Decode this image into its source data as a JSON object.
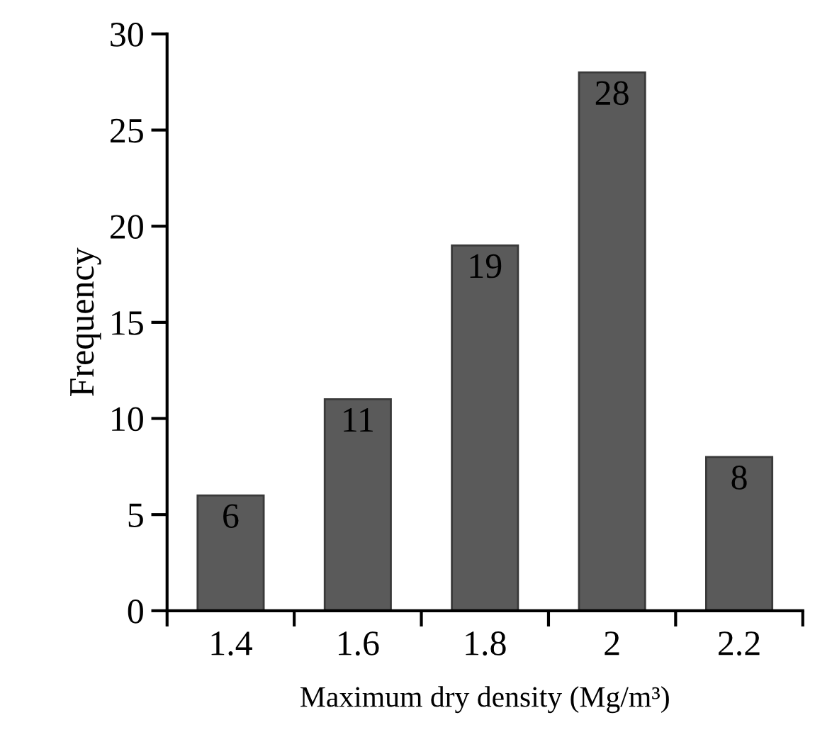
{
  "chart_data": {
    "type": "bar",
    "categories": [
      "1.4",
      "1.6",
      "1.8",
      "2",
      "2.2"
    ],
    "values": [
      6,
      11,
      19,
      28,
      8
    ],
    "color": "#5a5a5a",
    "xlabel": "Maximum dry density (Mg/m³)",
    "ylabel": "Frequency",
    "ylim": [
      0,
      30
    ],
    "yticks": [
      0,
      5,
      10,
      15,
      20,
      25,
      30
    ],
    "grid": false,
    "legend": false,
    "data_labels": true
  }
}
